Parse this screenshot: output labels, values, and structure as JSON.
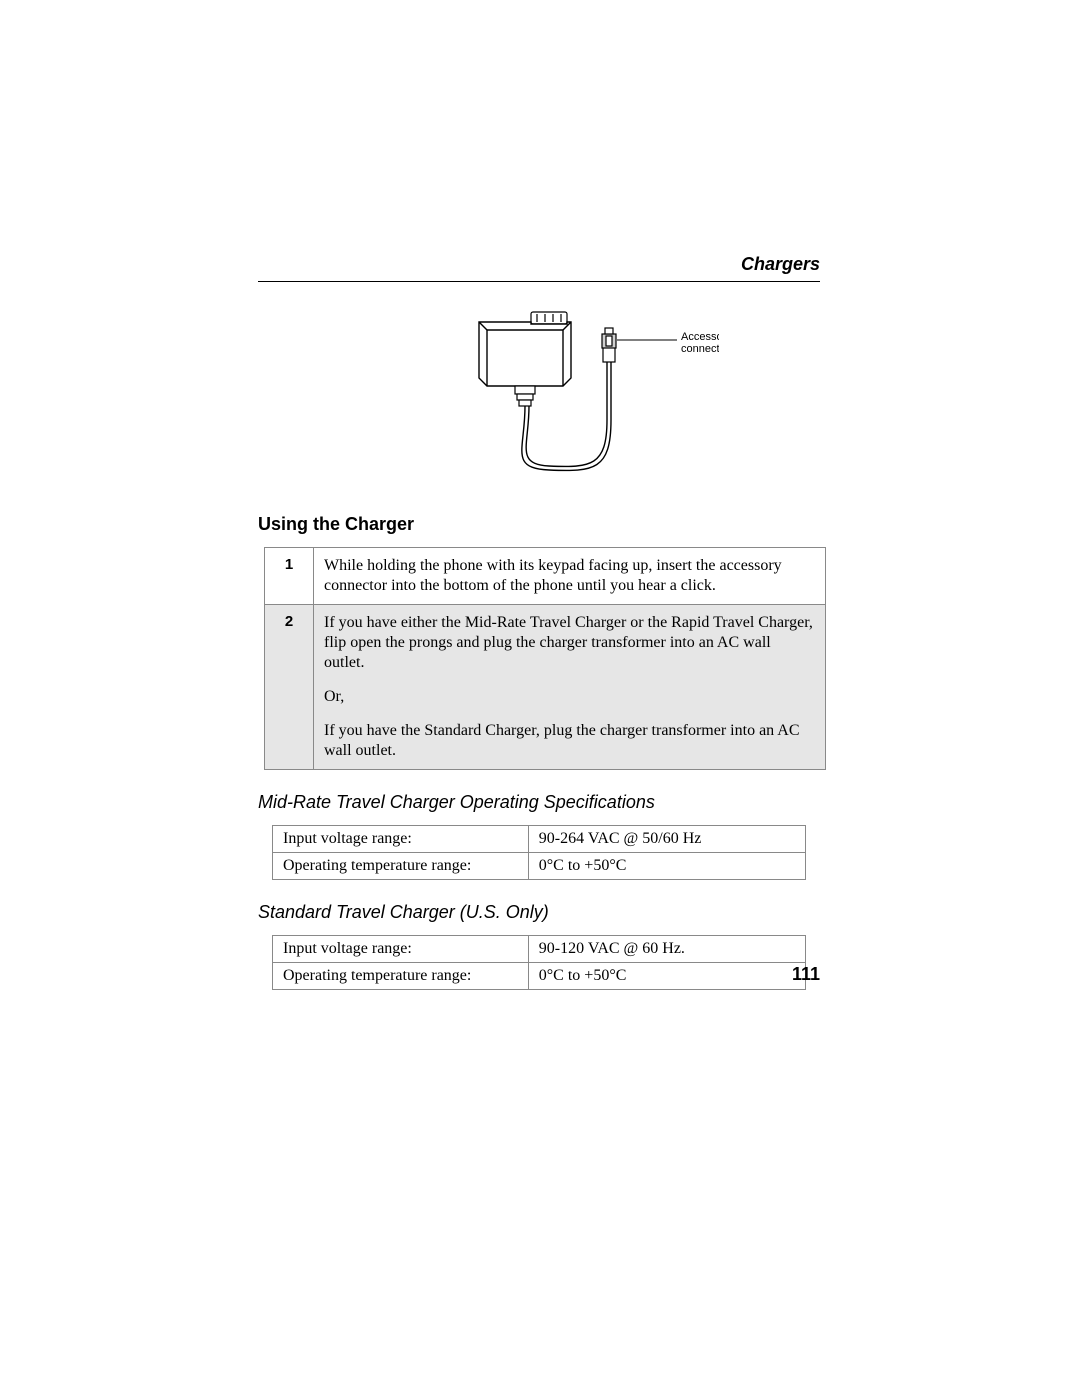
{
  "header": {
    "section_title": "Chargers"
  },
  "figure": {
    "callout_line1": "Accessory",
    "callout_line2": "connector",
    "stroke": "#000000",
    "fill_white": "#ffffff",
    "fill_hatch": "#cfcfcf",
    "callout_fontsize": 11
  },
  "section": {
    "using_heading": "Using the Charger"
  },
  "steps": {
    "border_color": "#898989",
    "shaded_bg": "#e6e6e6",
    "rows": [
      {
        "num": "1",
        "shaded": false,
        "paras": [
          "While holding the phone with its keypad facing up, insert the accessory connector into the bottom of the phone until you hear a click."
        ]
      },
      {
        "num": "2",
        "shaded": true,
        "paras": [
          "If you have either the Mid-Rate Travel Charger or the Rapid Travel Charger, flip open the prongs and plug the charger transformer into an AC wall outlet.",
          "Or,",
          "If you have the Standard Charger, plug the charger transformer into an AC wall outlet."
        ]
      }
    ]
  },
  "spec_tables": [
    {
      "heading": "Mid-Rate Travel Charger Operating Specifications",
      "border_color": "#898989",
      "rows": [
        {
          "label": "Input voltage range:",
          "value": "90-264 VAC @ 50/60 Hz"
        },
        {
          "label": "Operating temperature range:",
          "value": "0°C to +50°C"
        }
      ]
    },
    {
      "heading": "Standard Travel Charger (U.S. Only)",
      "border_color": "#898989",
      "rows": [
        {
          "label": "Input voltage range:",
          "value": "90-120 VAC @ 60 Hz."
        },
        {
          "label": "Operating temperature range:",
          "value": "0°C to +50°C"
        }
      ]
    }
  ],
  "page_number": "111"
}
